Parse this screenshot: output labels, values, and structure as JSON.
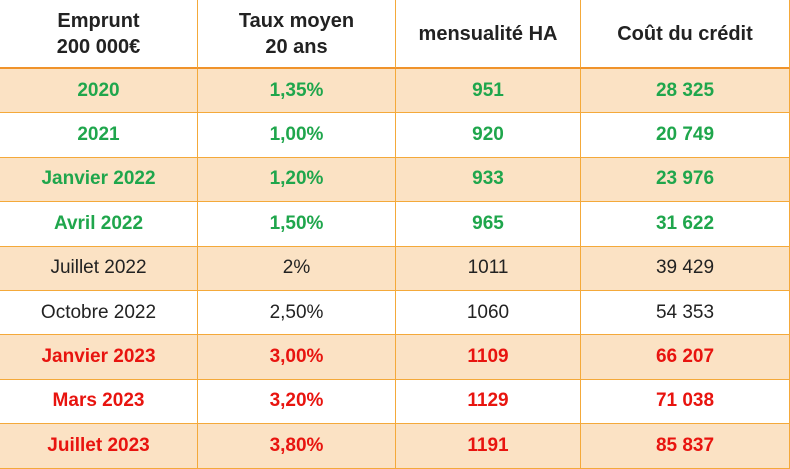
{
  "table": {
    "header": [
      "Emprunt\n200 000€",
      "Taux moyen\n20 ans",
      "mensualité HA",
      "Coût du crédit"
    ],
    "rows": [
      {
        "cells": [
          "2020",
          "1,35%",
          "951",
          "28 325"
        ],
        "color": "#1fa64c",
        "bold": true,
        "shaded": true
      },
      {
        "cells": [
          "2021",
          "1,00%",
          "920",
          "20 749"
        ],
        "color": "#1fa64c",
        "bold": true,
        "shaded": false
      },
      {
        "cells": [
          "Janvier 2022",
          "1,20%",
          "933",
          "23 976"
        ],
        "color": "#1fa64c",
        "bold": true,
        "shaded": true
      },
      {
        "cells": [
          "Avril 2022",
          "1,50%",
          "965",
          "31 622"
        ],
        "color": "#1fa64c",
        "bold": true,
        "shaded": false
      },
      {
        "cells": [
          "Juillet 2022",
          "2%",
          "1011",
          "39 429"
        ],
        "color": "#222222",
        "bold": false,
        "shaded": true
      },
      {
        "cells": [
          "Octobre 2022",
          "2,50%",
          "1060",
          "54 353"
        ],
        "color": "#222222",
        "bold": false,
        "shaded": false
      },
      {
        "cells": [
          "Janvier  2023",
          "3,00%",
          "1109",
          "66 207"
        ],
        "color": "#e8140f",
        "bold": true,
        "shaded": true
      },
      {
        "cells": [
          "Mars 2023",
          "3,20%",
          "1129",
          "71 038"
        ],
        "color": "#e8140f",
        "bold": true,
        "shaded": false
      },
      {
        "cells": [
          "Juillet 2023",
          "3,80%",
          "1191",
          "85 837"
        ],
        "color": "#e8140f",
        "bold": true,
        "shaded": true
      }
    ]
  }
}
